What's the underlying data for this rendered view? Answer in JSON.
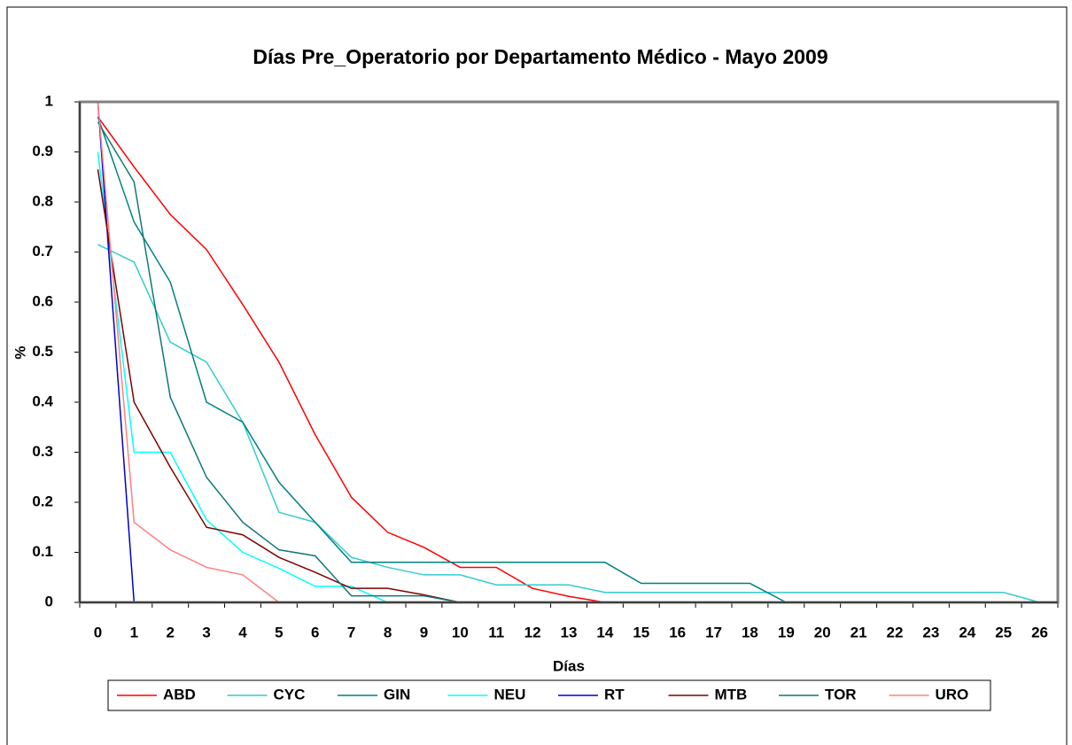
{
  "chart_data": {
    "type": "line",
    "title": "Días Pre_Operatorio por Departamento Médico - Mayo 2009",
    "x_label": "Días",
    "y_label": "%",
    "categories": [
      "0",
      "1",
      "2",
      "3",
      "4",
      "5",
      "6",
      "7",
      "8",
      "9",
      "10",
      "11",
      "12",
      "13",
      "14",
      "15",
      "16",
      "17",
      "18",
      "19",
      "20",
      "21",
      "22",
      "23",
      "24",
      "25",
      "26"
    ],
    "ylim": [
      0,
      1
    ],
    "yticks": [
      0,
      0.1,
      0.2,
      0.3,
      0.4,
      0.5,
      0.6,
      0.7,
      0.8,
      0.9,
      1
    ],
    "series": [
      {
        "name": "ABD",
        "color": "#ff0000",
        "values": [
          0.97,
          0.87,
          0.775,
          0.705,
          0.595,
          0.48,
          0.335,
          0.21,
          0.14,
          0.11,
          0.07,
          0.07,
          0.028,
          0.012,
          0,
          null,
          null,
          null,
          null,
          null,
          null,
          null,
          null,
          null,
          null,
          null,
          null
        ]
      },
      {
        "name": "CYC",
        "color": "#33cccc",
        "values": [
          0.715,
          0.68,
          0.52,
          0.48,
          0.36,
          0.18,
          0.16,
          0.09,
          0.07,
          0.055,
          0.055,
          0.035,
          0.035,
          0.035,
          0.02,
          0.02,
          0.02,
          0.02,
          0.02,
          0.02,
          0.02,
          0.02,
          0.02,
          0.02,
          0.02,
          0.02,
          0
        ]
      },
      {
        "name": "GIN",
        "color": "#008080",
        "values": [
          0.97,
          0.76,
          0.64,
          0.4,
          0.36,
          0.24,
          0.16,
          0.08,
          0.08,
          0.08,
          0.08,
          0.08,
          0.08,
          0.08,
          0.08,
          0.038,
          0.038,
          0.038,
          0.038,
          0,
          null,
          null,
          null,
          null,
          null,
          null,
          null
        ]
      },
      {
        "name": "NEU",
        "color": "#00ffff",
        "values": [
          0.9,
          0.3,
          0.3,
          0.165,
          0.1,
          0.068,
          0.032,
          0.032,
          0,
          null,
          null,
          null,
          null,
          null,
          null,
          null,
          null,
          null,
          null,
          null,
          null,
          null,
          null,
          null,
          null,
          null,
          null
        ]
      },
      {
        "name": "RT",
        "color": "#0000cc",
        "values": [
          1,
          0,
          null,
          null,
          null,
          null,
          null,
          null,
          null,
          null,
          null,
          null,
          null,
          null,
          null,
          null,
          null,
          null,
          null,
          null,
          null,
          null,
          null,
          null,
          null,
          null,
          null
        ]
      },
      {
        "name": "MTB",
        "color": "#800000",
        "values": [
          0.865,
          0.4,
          0.27,
          0.15,
          0.135,
          0.09,
          0.06,
          0.028,
          0.028,
          0.015,
          0,
          null,
          null,
          null,
          null,
          null,
          null,
          null,
          null,
          null,
          null,
          null,
          null,
          null,
          null,
          null,
          null
        ]
      },
      {
        "name": "TOR",
        "color": "#117777",
        "values": [
          0.96,
          0.84,
          0.41,
          0.25,
          0.16,
          0.105,
          0.093,
          0.013,
          0.013,
          0.013,
          0,
          null,
          null,
          null,
          null,
          null,
          null,
          null,
          null,
          null,
          null,
          null,
          null,
          null,
          null,
          null,
          null
        ]
      },
      {
        "name": "URO",
        "color": "#ff8080",
        "values": [
          1,
          0.16,
          0.105,
          0.07,
          0.055,
          0,
          null,
          null,
          null,
          null,
          null,
          null,
          null,
          null,
          null,
          null,
          null,
          null,
          null,
          null,
          null,
          null,
          null,
          null,
          null,
          null,
          null
        ]
      }
    ]
  }
}
